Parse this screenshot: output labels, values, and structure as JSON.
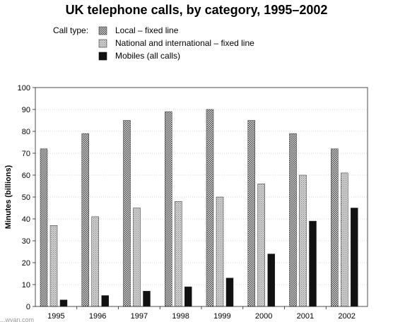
{
  "chart_data": {
    "type": "bar",
    "title": "UK telephone calls, by category, 1995–2002",
    "legend_title": "Call type:",
    "legend_position": "top",
    "xlabel": "",
    "ylabel": "Minutes (billions)",
    "ylim": [
      0,
      100
    ],
    "yticks": [
      0,
      10,
      20,
      30,
      40,
      50,
      60,
      70,
      80,
      90,
      100
    ],
    "grid": "horizontal dotted",
    "categories": [
      "1995",
      "1996",
      "1997",
      "1998",
      "1999",
      "2000",
      "2001",
      "2002"
    ],
    "series": [
      {
        "name": "Local – fixed line",
        "pattern": "dense-grey",
        "values": [
          72,
          79,
          85,
          89,
          90,
          85,
          79,
          72
        ]
      },
      {
        "name": "National and international – fixed line",
        "pattern": "light-grey",
        "values": [
          37,
          41,
          45,
          48,
          50,
          56,
          60,
          61
        ]
      },
      {
        "name": "Mobiles (all calls)",
        "pattern": "black",
        "values": [
          3,
          5,
          7,
          9,
          13,
          24,
          39,
          45
        ]
      }
    ]
  },
  "watermark": "...wyan.com",
  "colors": {
    "local_fill": "#8c8c8c",
    "national_fill": "#b9b9b9",
    "mobile_fill": "#111111",
    "grid": "#b5b5b5",
    "axis": "#222222"
  }
}
